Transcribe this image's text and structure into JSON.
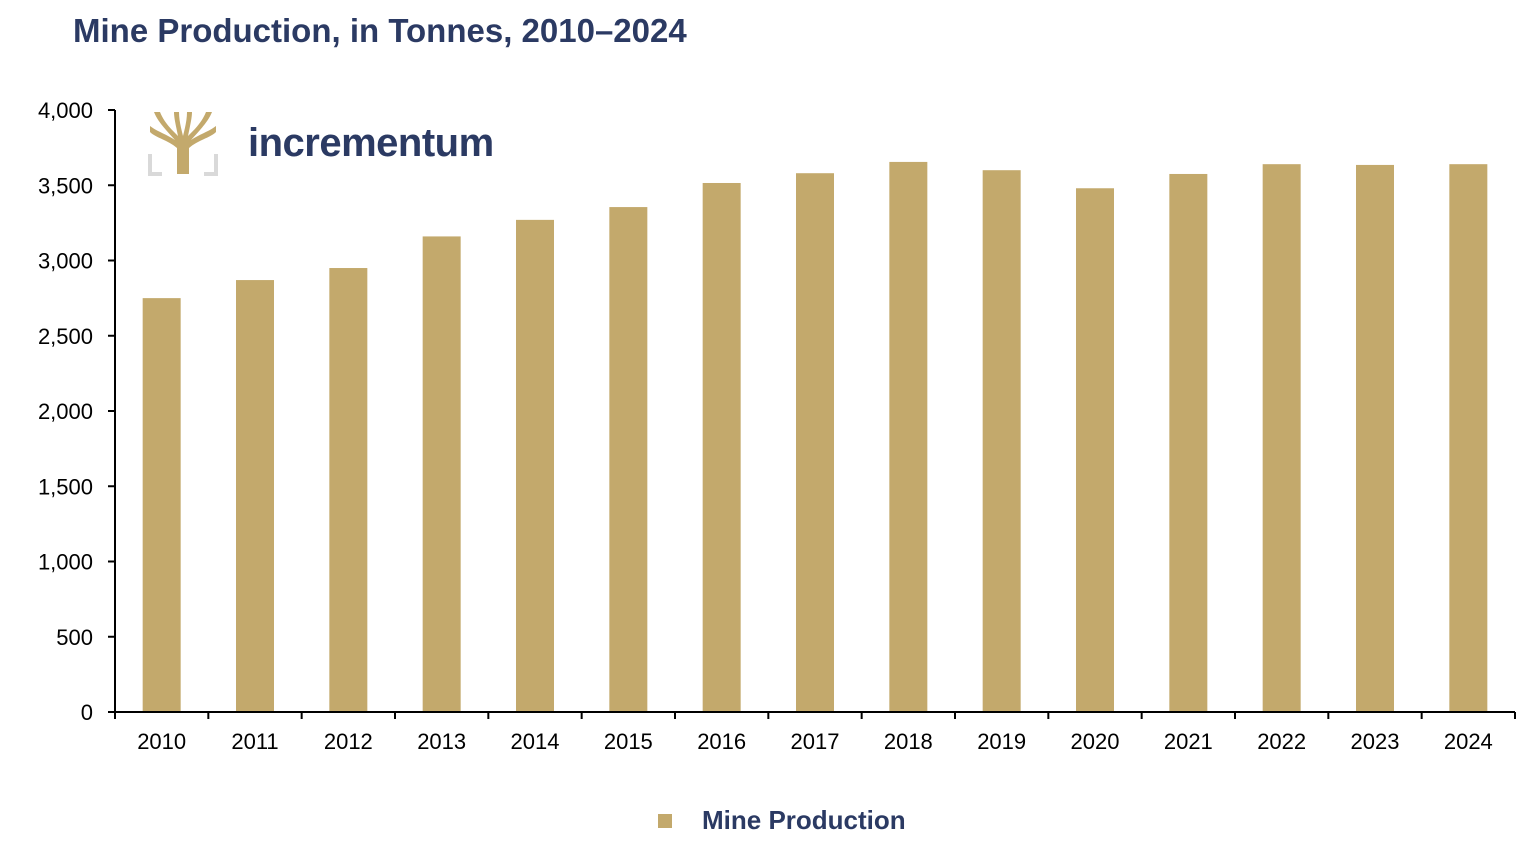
{
  "chart_data": {
    "type": "bar",
    "title": "Mine Production, in Tonnes, 2010–2024",
    "xlabel": "",
    "ylabel": "",
    "categories": [
      "2010",
      "2011",
      "2012",
      "2013",
      "2014",
      "2015",
      "2016",
      "2017",
      "2018",
      "2019",
      "2020",
      "2021",
      "2022",
      "2023",
      "2024"
    ],
    "series": [
      {
        "name": "Mine Production",
        "color": "#c3a96c",
        "values": [
          2750,
          2870,
          2950,
          3160,
          3270,
          3355,
          3515,
          3580,
          3655,
          3600,
          3480,
          3575,
          3640,
          3635,
          3640
        ]
      }
    ],
    "ylim": [
      0,
      4000
    ],
    "yticks": [
      0,
      500,
      1000,
      1500,
      2000,
      2500,
      3000,
      3500,
      4000
    ],
    "ytick_labels": [
      "0",
      "500",
      "1,000",
      "1,500",
      "2,000",
      "2,500",
      "3,000",
      "3,500",
      "4,000"
    ],
    "grid": false,
    "legend_position": "bottom-center"
  },
  "branding": {
    "logo_text": "incrementum"
  },
  "colors": {
    "title": "#2b3a63",
    "bar": "#c3a96c",
    "logo_gray": "#d9d9d9"
  }
}
